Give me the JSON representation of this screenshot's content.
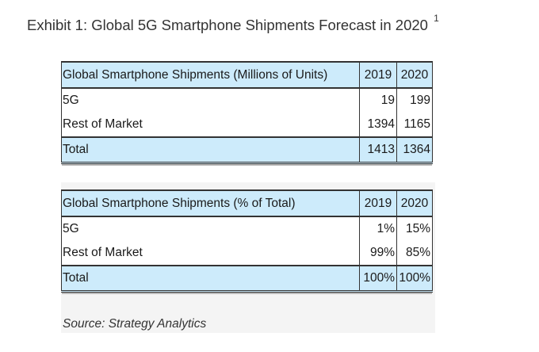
{
  "title": "Exhibit 1: Global 5G Smartphone Shipments Forecast in 2020",
  "title_footnote": "1",
  "tables": [
    {
      "header": {
        "label": "Global Smartphone Shipments (Millions of Units)",
        "y2019": "2019",
        "y2020": "2020"
      },
      "rows": [
        {
          "label": "5G",
          "y2019": "19",
          "y2020": "199"
        },
        {
          "label": "Rest of Market",
          "y2019": "1394",
          "y2020": "1165"
        }
      ],
      "total": {
        "label": "Total",
        "y2019": "1413",
        "y2020": "1364"
      }
    },
    {
      "header": {
        "label": "Global Smartphone Shipments (% of Total)",
        "y2019": "2019",
        "y2020": "2020"
      },
      "rows": [
        {
          "label": "5G",
          "y2019": "1%",
          "y2020": "15%"
        },
        {
          "label": "Rest of Market",
          "y2019": "99%",
          "y2020": "85%"
        }
      ],
      "total": {
        "label": "Total",
        "y2019": "100%",
        "y2020": "100%"
      }
    }
  ],
  "source": "Source: Strategy Analytics",
  "colors": {
    "header_bg": "#cdebfb",
    "border": "#333333",
    "text": "#1a1a1a"
  }
}
